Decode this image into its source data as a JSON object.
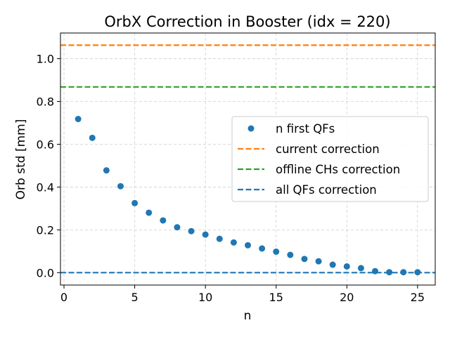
{
  "chart_data": {
    "type": "scatter",
    "title": "OrbX Correction in Booster (idx = 220)",
    "xlabel": "n",
    "ylabel": "Orb std [mm]",
    "xlim": [
      -0.25,
      26.25
    ],
    "ylim": [
      -0.058,
      1.12
    ],
    "x_ticks": [
      0,
      5,
      10,
      15,
      20,
      25
    ],
    "y_ticks": [
      0.0,
      0.2,
      0.4,
      0.6,
      0.8,
      1.0
    ],
    "x_tick_labels": [
      "0",
      "5",
      "10",
      "15",
      "20",
      "25"
    ],
    "y_tick_labels": [
      "0.0",
      "0.2",
      "0.4",
      "0.6",
      "0.8",
      "1.0"
    ],
    "grid": true,
    "legend_position": "center-right",
    "points": {
      "name": "n first QFs",
      "color": "#1f77b4",
      "x": [
        1,
        2,
        3,
        4,
        5,
        6,
        7,
        8,
        9,
        10,
        11,
        12,
        13,
        14,
        15,
        16,
        17,
        18,
        19,
        20,
        21,
        22,
        23,
        24,
        25
      ],
      "y": [
        0.718,
        0.63,
        0.478,
        0.404,
        0.325,
        0.28,
        0.244,
        0.212,
        0.194,
        0.178,
        0.158,
        0.141,
        0.128,
        0.113,
        0.098,
        0.083,
        0.064,
        0.053,
        0.037,
        0.029,
        0.021,
        0.007,
        0.002,
        0.002,
        0.002
      ]
    },
    "lines": [
      {
        "name": "current correction",
        "y": 1.063,
        "color": "#ff7f0e"
      },
      {
        "name": "offline CHs correction",
        "y": 0.868,
        "color": "#2ca02c"
      },
      {
        "name": "all QFs correction",
        "y": 0.0,
        "color": "#1f77b4"
      }
    ]
  }
}
